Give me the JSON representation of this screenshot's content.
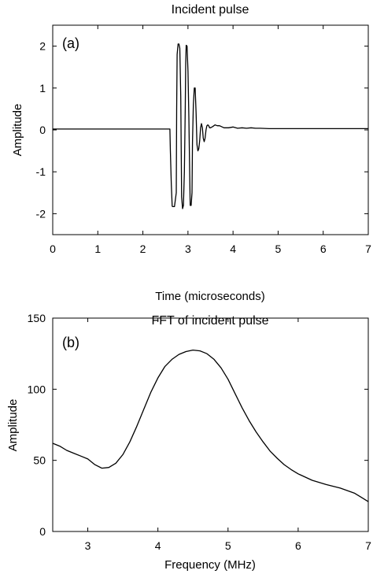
{
  "chart_data": [
    {
      "type": "line",
      "title": "Incident pulse",
      "xlabel": "Time (microseconds)",
      "ylabel": "Amplitude",
      "panel_label": "(a)",
      "xlim": [
        0,
        7
      ],
      "ylim": [
        -2.5,
        2.5
      ],
      "xticks": [
        0,
        1,
        2,
        3,
        4,
        5,
        6,
        7
      ],
      "yticks": [
        -2,
        -1,
        0,
        1,
        2
      ],
      "grid": false,
      "series": [
        {
          "x": [
            0,
            2.6,
            2.61,
            2.63,
            2.65,
            2.66,
            2.7,
            2.74,
            2.75,
            2.76,
            2.78,
            2.8,
            2.82,
            2.84,
            2.85,
            2.86,
            2.88,
            2.9,
            2.92,
            2.94,
            2.95,
            2.96,
            2.98,
            3.0,
            3.02,
            3.04,
            3.05,
            3.07,
            3.09,
            3.1,
            3.12,
            3.14,
            3.16,
            3.18,
            3.2,
            3.22,
            3.24,
            3.26,
            3.28,
            3.3,
            3.32,
            3.34,
            3.36,
            3.38,
            3.4,
            3.42,
            3.44,
            3.46,
            3.48,
            3.5,
            3.55,
            3.6,
            3.65,
            3.7,
            3.8,
            3.9,
            4.0,
            4.1,
            4.2,
            4.3,
            4.4,
            4.5,
            4.6,
            4.8,
            5.0,
            5.5,
            6.0,
            6.5,
            7.0
          ],
          "y": [
            0.02,
            0.02,
            -0.5,
            -1.3,
            -1.82,
            -1.83,
            -1.83,
            -1.5,
            0.5,
            1.8,
            2.05,
            2.05,
            1.95,
            0.8,
            -0.5,
            -1.6,
            -1.88,
            -1.8,
            -1.0,
            0.5,
            1.6,
            2.02,
            2.0,
            1.4,
            0.3,
            -1.1,
            -1.8,
            -1.8,
            -1.5,
            -0.3,
            0.6,
            1.0,
            1.0,
            0.4,
            -0.35,
            -0.5,
            -0.45,
            -0.25,
            0.05,
            0.15,
            0.05,
            -0.2,
            -0.28,
            -0.2,
            0.0,
            0.1,
            0.12,
            0.1,
            0.05,
            0.05,
            0.08,
            0.12,
            0.1,
            0.1,
            0.05,
            0.05,
            0.07,
            0.04,
            0.05,
            0.04,
            0.05,
            0.04,
            0.04,
            0.03,
            0.03,
            0.03,
            0.03,
            0.03,
            0.03
          ]
        }
      ]
    },
    {
      "type": "line",
      "title": "FFT of incident pulse",
      "xlabel": "Frequency (MHz)",
      "ylabel": "Amplitude",
      "panel_label": "(b)",
      "xlim": [
        2.5,
        7
      ],
      "ylim": [
        0,
        150
      ],
      "xticks": [
        3,
        4,
        5,
        6,
        7
      ],
      "yticks": [
        0,
        50,
        100,
        150
      ],
      "grid": false,
      "series": [
        {
          "x": [
            2.5,
            2.6,
            2.7,
            2.8,
            2.9,
            3.0,
            3.1,
            3.2,
            3.3,
            3.4,
            3.5,
            3.6,
            3.7,
            3.8,
            3.9,
            4.0,
            4.1,
            4.2,
            4.3,
            4.4,
            4.5,
            4.6,
            4.7,
            4.8,
            4.9,
            5.0,
            5.1,
            5.2,
            5.3,
            5.4,
            5.5,
            5.6,
            5.7,
            5.8,
            5.9,
            6.0,
            6.2,
            6.4,
            6.6,
            6.8,
            6.9,
            7.0
          ],
          "y": [
            62,
            60,
            57,
            55,
            53,
            51,
            47,
            44.5,
            45,
            48,
            54,
            63,
            74,
            86,
            98,
            108,
            116,
            121,
            124.5,
            126.5,
            127.5,
            127,
            125,
            121,
            115,
            107,
            97,
            87,
            78,
            70,
            63,
            56.5,
            51.5,
            47,
            43.5,
            40.5,
            36,
            33,
            30.5,
            27,
            24,
            21
          ]
        }
      ]
    }
  ]
}
